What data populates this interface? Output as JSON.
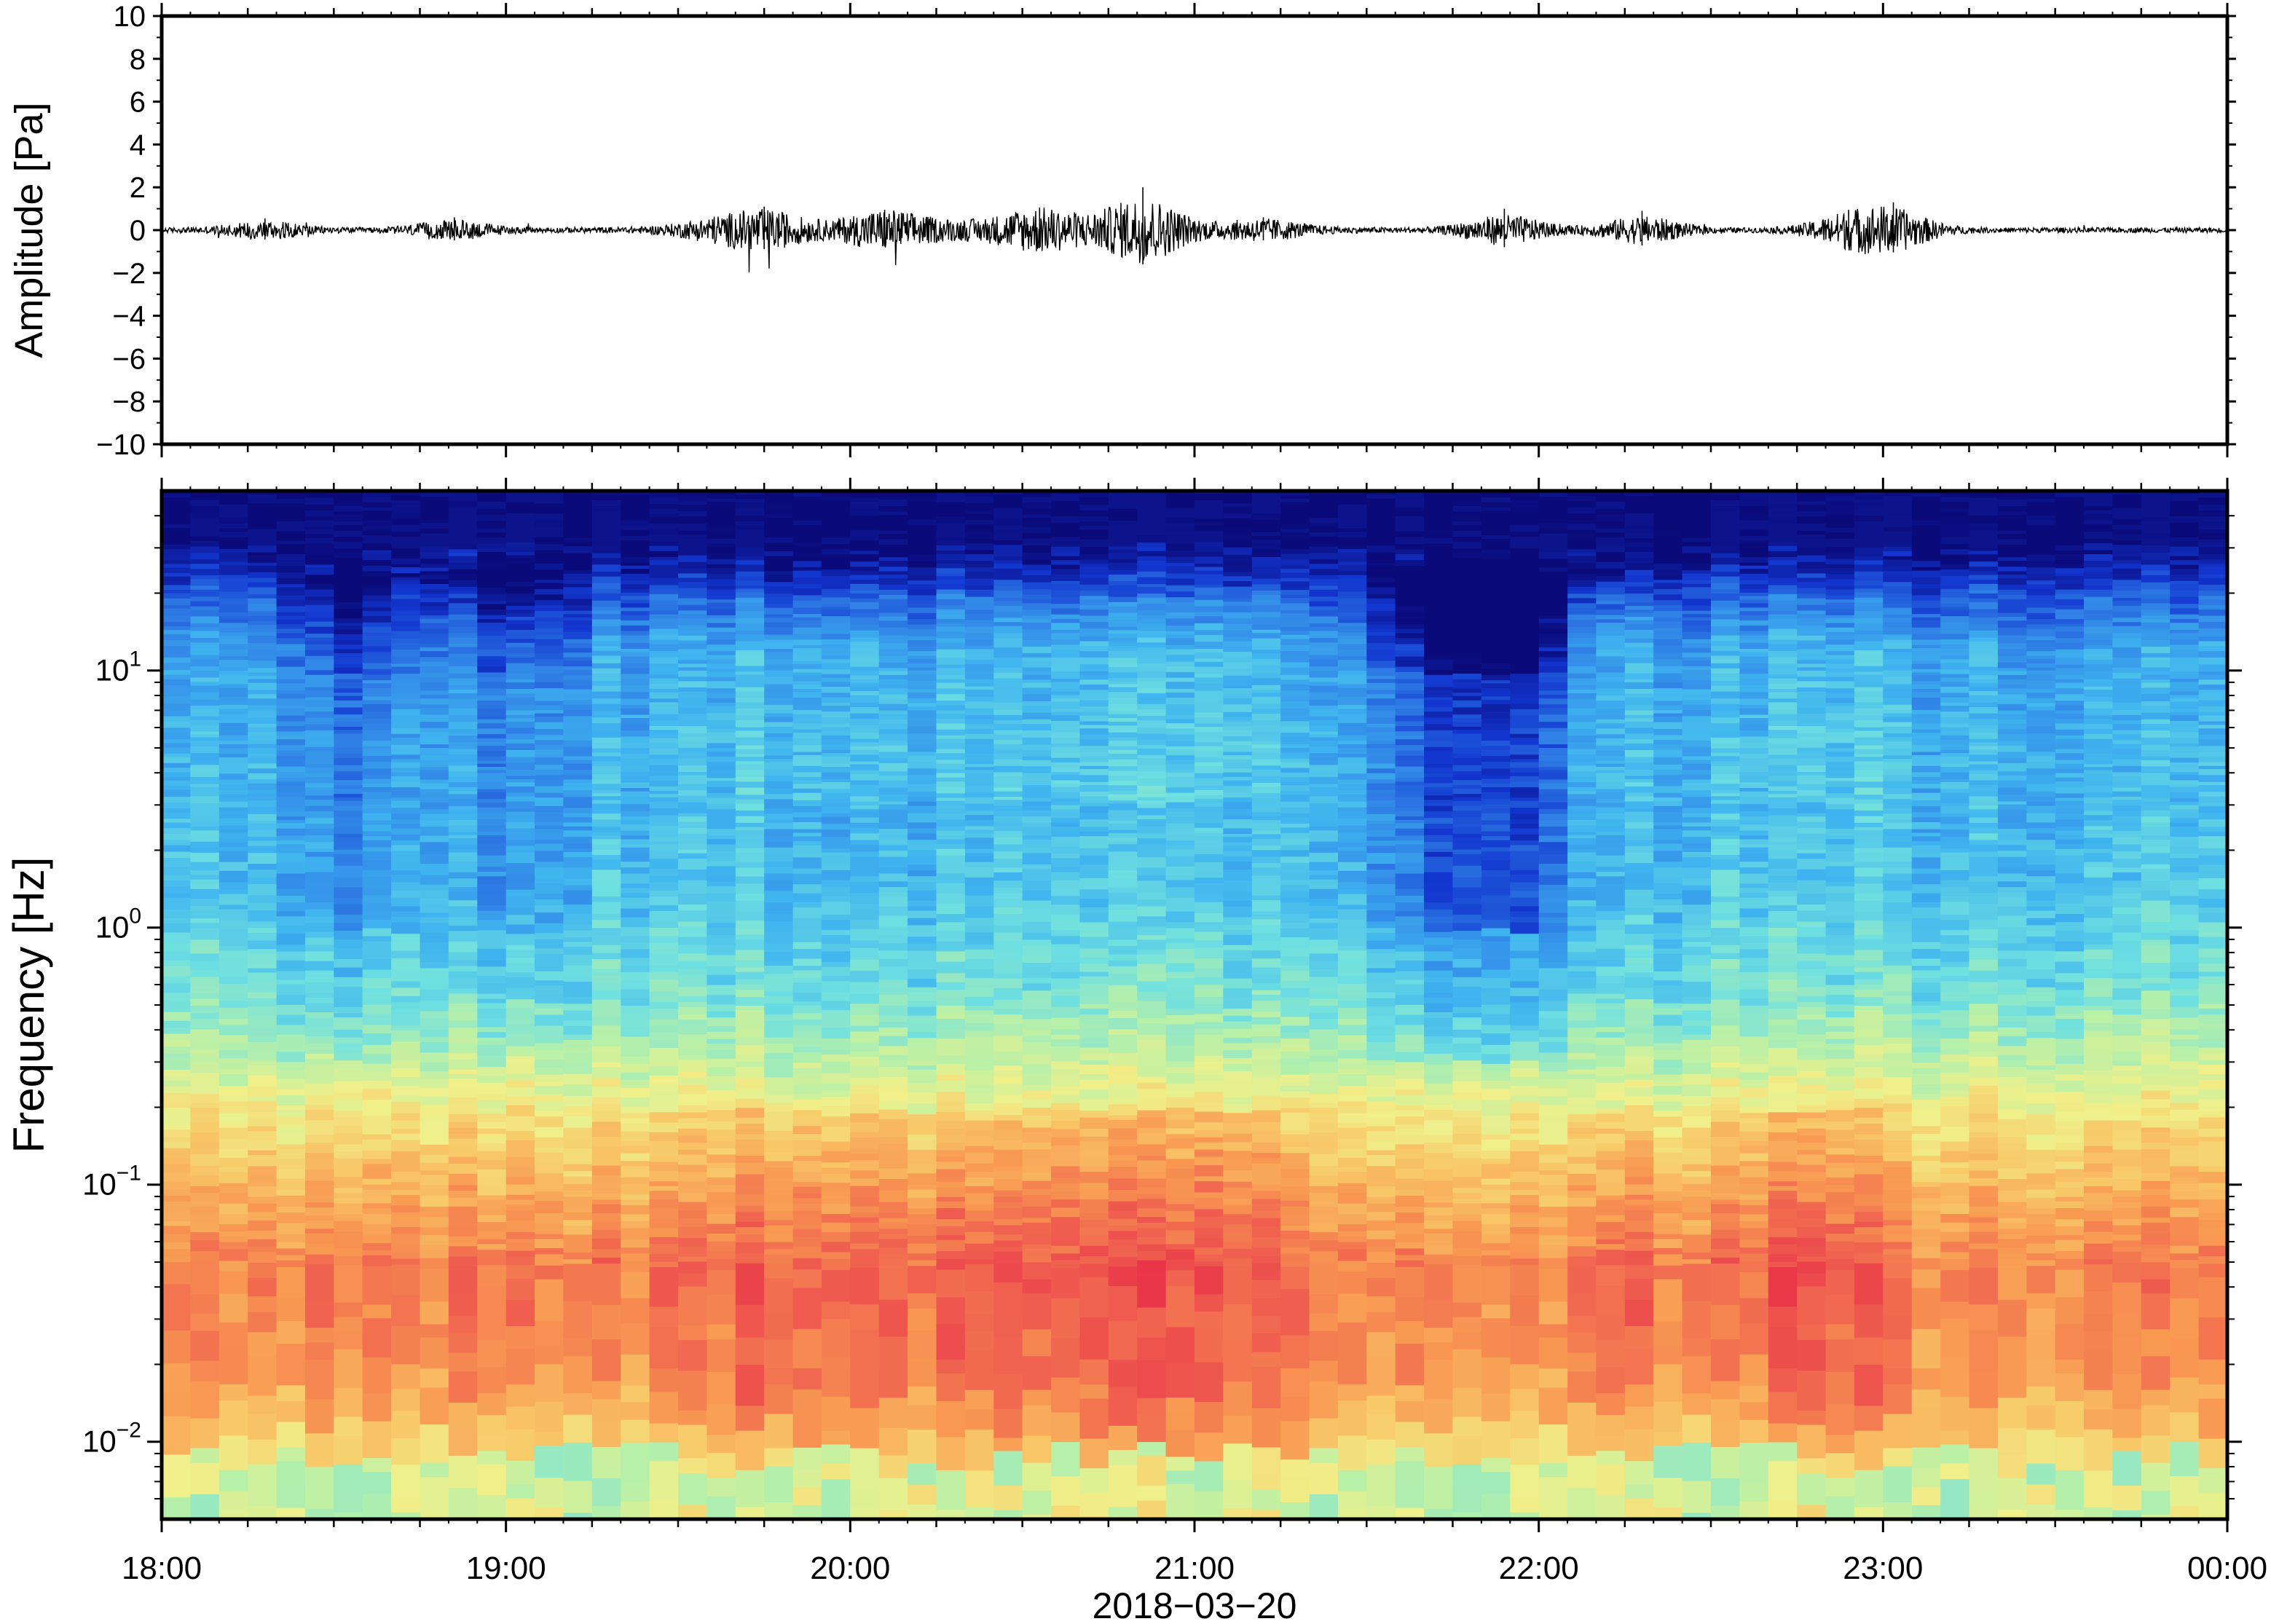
{
  "chart_data": [
    {
      "type": "line",
      "panel": "waveform",
      "ylabel": "Amplitude [Pa]",
      "ylim": [
        -10,
        10
      ],
      "yticks": [
        "10",
        "8",
        "6",
        "4",
        "2",
        "0",
        "−2",
        "−4",
        "−6",
        "−8",
        "−10"
      ],
      "ytick_values": [
        10,
        8,
        6,
        4,
        2,
        0,
        -2,
        -4,
        -6,
        -8,
        -10
      ],
      "grid": false,
      "series_color": "#000000",
      "baseline_noise": 0.12,
      "bursts": [
        {
          "t": 0.3,
          "amp": 0.55
        },
        {
          "t": 0.85,
          "amp": 0.6
        },
        {
          "t": 1.6,
          "amp": 0.5
        },
        {
          "t": 1.75,
          "amp": 1.1
        },
        {
          "t": 2.1,
          "amp": 0.95
        },
        {
          "t": 2.55,
          "amp": 1.05
        },
        {
          "t": 2.85,
          "amp": 2.0
        },
        {
          "t": 3.2,
          "amp": 0.6
        },
        {
          "t": 3.9,
          "amp": 1.0
        },
        {
          "t": 4.3,
          "amp": 0.9
        },
        {
          "t": 4.9,
          "amp": 0.95
        },
        {
          "t": 5.03,
          "amp": 1.3
        }
      ]
    },
    {
      "type": "heatmap",
      "panel": "spectrogram",
      "ylabel": "Frequency [Hz]",
      "yscale": "log",
      "ylim": [
        0.005,
        50
      ],
      "ytick_labels": [
        {
          "base": "10",
          "exp": "1",
          "value": 10
        },
        {
          "base": "10",
          "exp": "0",
          "value": 1
        },
        {
          "base": "10",
          "exp": "−1",
          "value": 0.1
        },
        {
          "base": "10",
          "exp": "−2",
          "value": 0.01
        }
      ],
      "colormap": [
        "#0a0a7a",
        "#1236cf",
        "#2f7fe5",
        "#3fb4ef",
        "#6fe0e0",
        "#b8f0a8",
        "#f0f08a",
        "#f8c868",
        "#f89852",
        "#ef5f4f",
        "#e83048"
      ],
      "dark_columns_hours": [
        {
          "t": 3.75,
          "width": 0.2,
          "strength": 1.0
        },
        {
          "t": 3.98,
          "width": 0.1,
          "strength": 0.8
        },
        {
          "t": 0.55,
          "width": 0.15,
          "strength": 0.6
        },
        {
          "t": 1.0,
          "width": 0.2,
          "strength": 0.5
        }
      ],
      "warm_columns_hours": [
        {
          "t": 1.9,
          "width": 0.35,
          "strength": 0.7
        },
        {
          "t": 2.7,
          "width": 0.5,
          "strength": 0.8
        },
        {
          "t": 3.15,
          "width": 0.15,
          "strength": 0.5
        },
        {
          "t": 4.25,
          "width": 0.15,
          "strength": 0.6
        },
        {
          "t": 4.8,
          "width": 0.2,
          "strength": 0.8
        }
      ]
    }
  ],
  "x_axis": {
    "tick_labels": [
      "18:00",
      "19:00",
      "20:00",
      "21:00",
      "22:00",
      "23:00",
      "00:00"
    ],
    "tick_hours": [
      0,
      1,
      2,
      3,
      4,
      5,
      6
    ],
    "xlabel": "2018−03−20",
    "range_hours": [
      0,
      6
    ]
  }
}
